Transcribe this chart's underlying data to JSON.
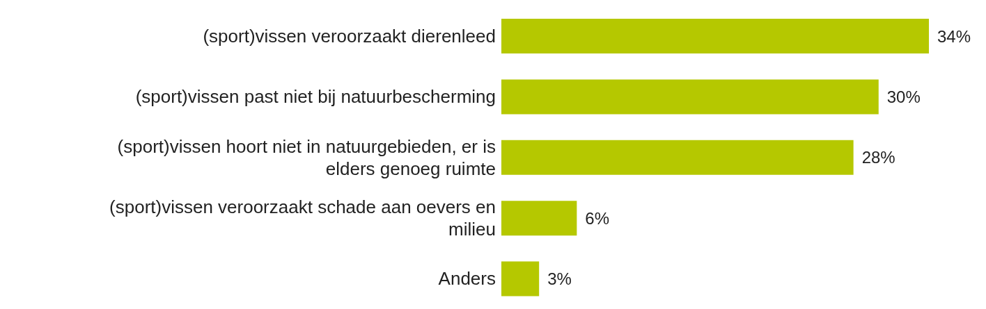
{
  "chart_data": {
    "type": "bar",
    "orientation": "horizontal",
    "categories": [
      "(sport)vissen veroorzaakt dierenleed",
      "(sport)vissen past niet bij natuurbescherming",
      "(sport)vissen hoort niet in natuurgebieden, er is elders genoeg ruimte",
      "(sport)vissen veroorzaakt schade aan oevers en milieu",
      "Anders"
    ],
    "values": [
      34,
      30,
      28,
      6,
      3
    ],
    "value_labels": [
      "34%",
      "30%",
      "28%",
      "6%",
      "3%"
    ],
    "color": "#b5c800",
    "grid": false,
    "legend": false
  }
}
